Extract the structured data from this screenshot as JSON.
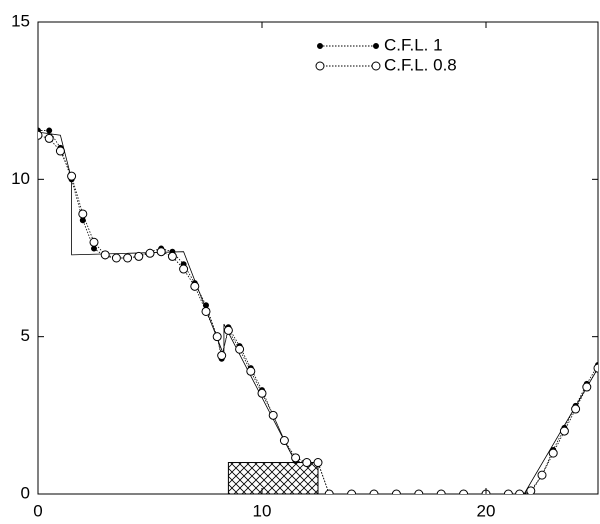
{
  "chart_data": {
    "type": "line",
    "xlim": [
      0,
      25
    ],
    "ylim": [
      0,
      15
    ],
    "xticks": [
      0,
      10,
      20
    ],
    "yticks": [
      0,
      5,
      10,
      15
    ],
    "legend": "upper-right",
    "x": [
      0,
      0.5,
      1,
      1.5,
      2,
      2.5,
      3,
      3.5,
      4,
      4.5,
      5,
      5.5,
      6,
      6.5,
      7,
      7.5,
      8,
      8.2,
      8.5,
      9,
      9.5,
      10,
      10.5,
      11,
      11.5,
      12,
      12.5,
      13,
      14,
      15,
      16,
      17,
      18,
      19,
      20,
      21,
      21.5,
      22,
      22.5,
      23,
      23.5,
      24,
      24.5,
      25
    ],
    "series": [
      {
        "name": "C.F.L. 1",
        "marker": "filled",
        "color": "#000",
        "values": [
          11.55,
          11.55,
          11.0,
          10.0,
          8.7,
          7.8,
          7.55,
          7.5,
          7.5,
          7.55,
          7.7,
          7.8,
          7.7,
          7.3,
          6.7,
          6.0,
          5.0,
          4.3,
          5.3,
          4.7,
          4.0,
          3.3,
          2.5,
          1.7,
          1.05,
          1.0,
          1.0,
          0,
          0,
          0,
          0,
          0,
          0,
          0,
          0,
          0,
          0,
          0.05,
          0.6,
          1.4,
          2.1,
          2.8,
          3.5,
          4.1
        ]
      },
      {
        "name": "C.F.L. 0.8",
        "marker": "open",
        "color": "#000",
        "values": [
          11.4,
          11.3,
          10.9,
          10.1,
          8.9,
          8.0,
          7.6,
          7.5,
          7.5,
          7.55,
          7.65,
          7.7,
          7.55,
          7.15,
          6.6,
          5.8,
          5.0,
          4.4,
          5.2,
          4.6,
          3.9,
          3.2,
          2.5,
          1.7,
          1.15,
          1.0,
          1.0,
          0,
          0,
          0,
          0,
          0,
          0,
          0,
          0,
          0,
          0,
          0.1,
          0.6,
          1.3,
          2.0,
          2.7,
          3.4,
          4.0
        ]
      }
    ],
    "reference": {
      "x": [
        0,
        1,
        1.5,
        1.5,
        6.5,
        8.3,
        8.3,
        11.5,
        12.5,
        12.5,
        21.7,
        25
      ],
      "y": [
        11.5,
        11.4,
        10,
        7.6,
        7.7,
        4.4,
        5.4,
        1.0,
        1.0,
        0,
        0,
        4
      ]
    },
    "obstacle": {
      "x": [
        8.5,
        12.5
      ],
      "height": 1
    }
  }
}
